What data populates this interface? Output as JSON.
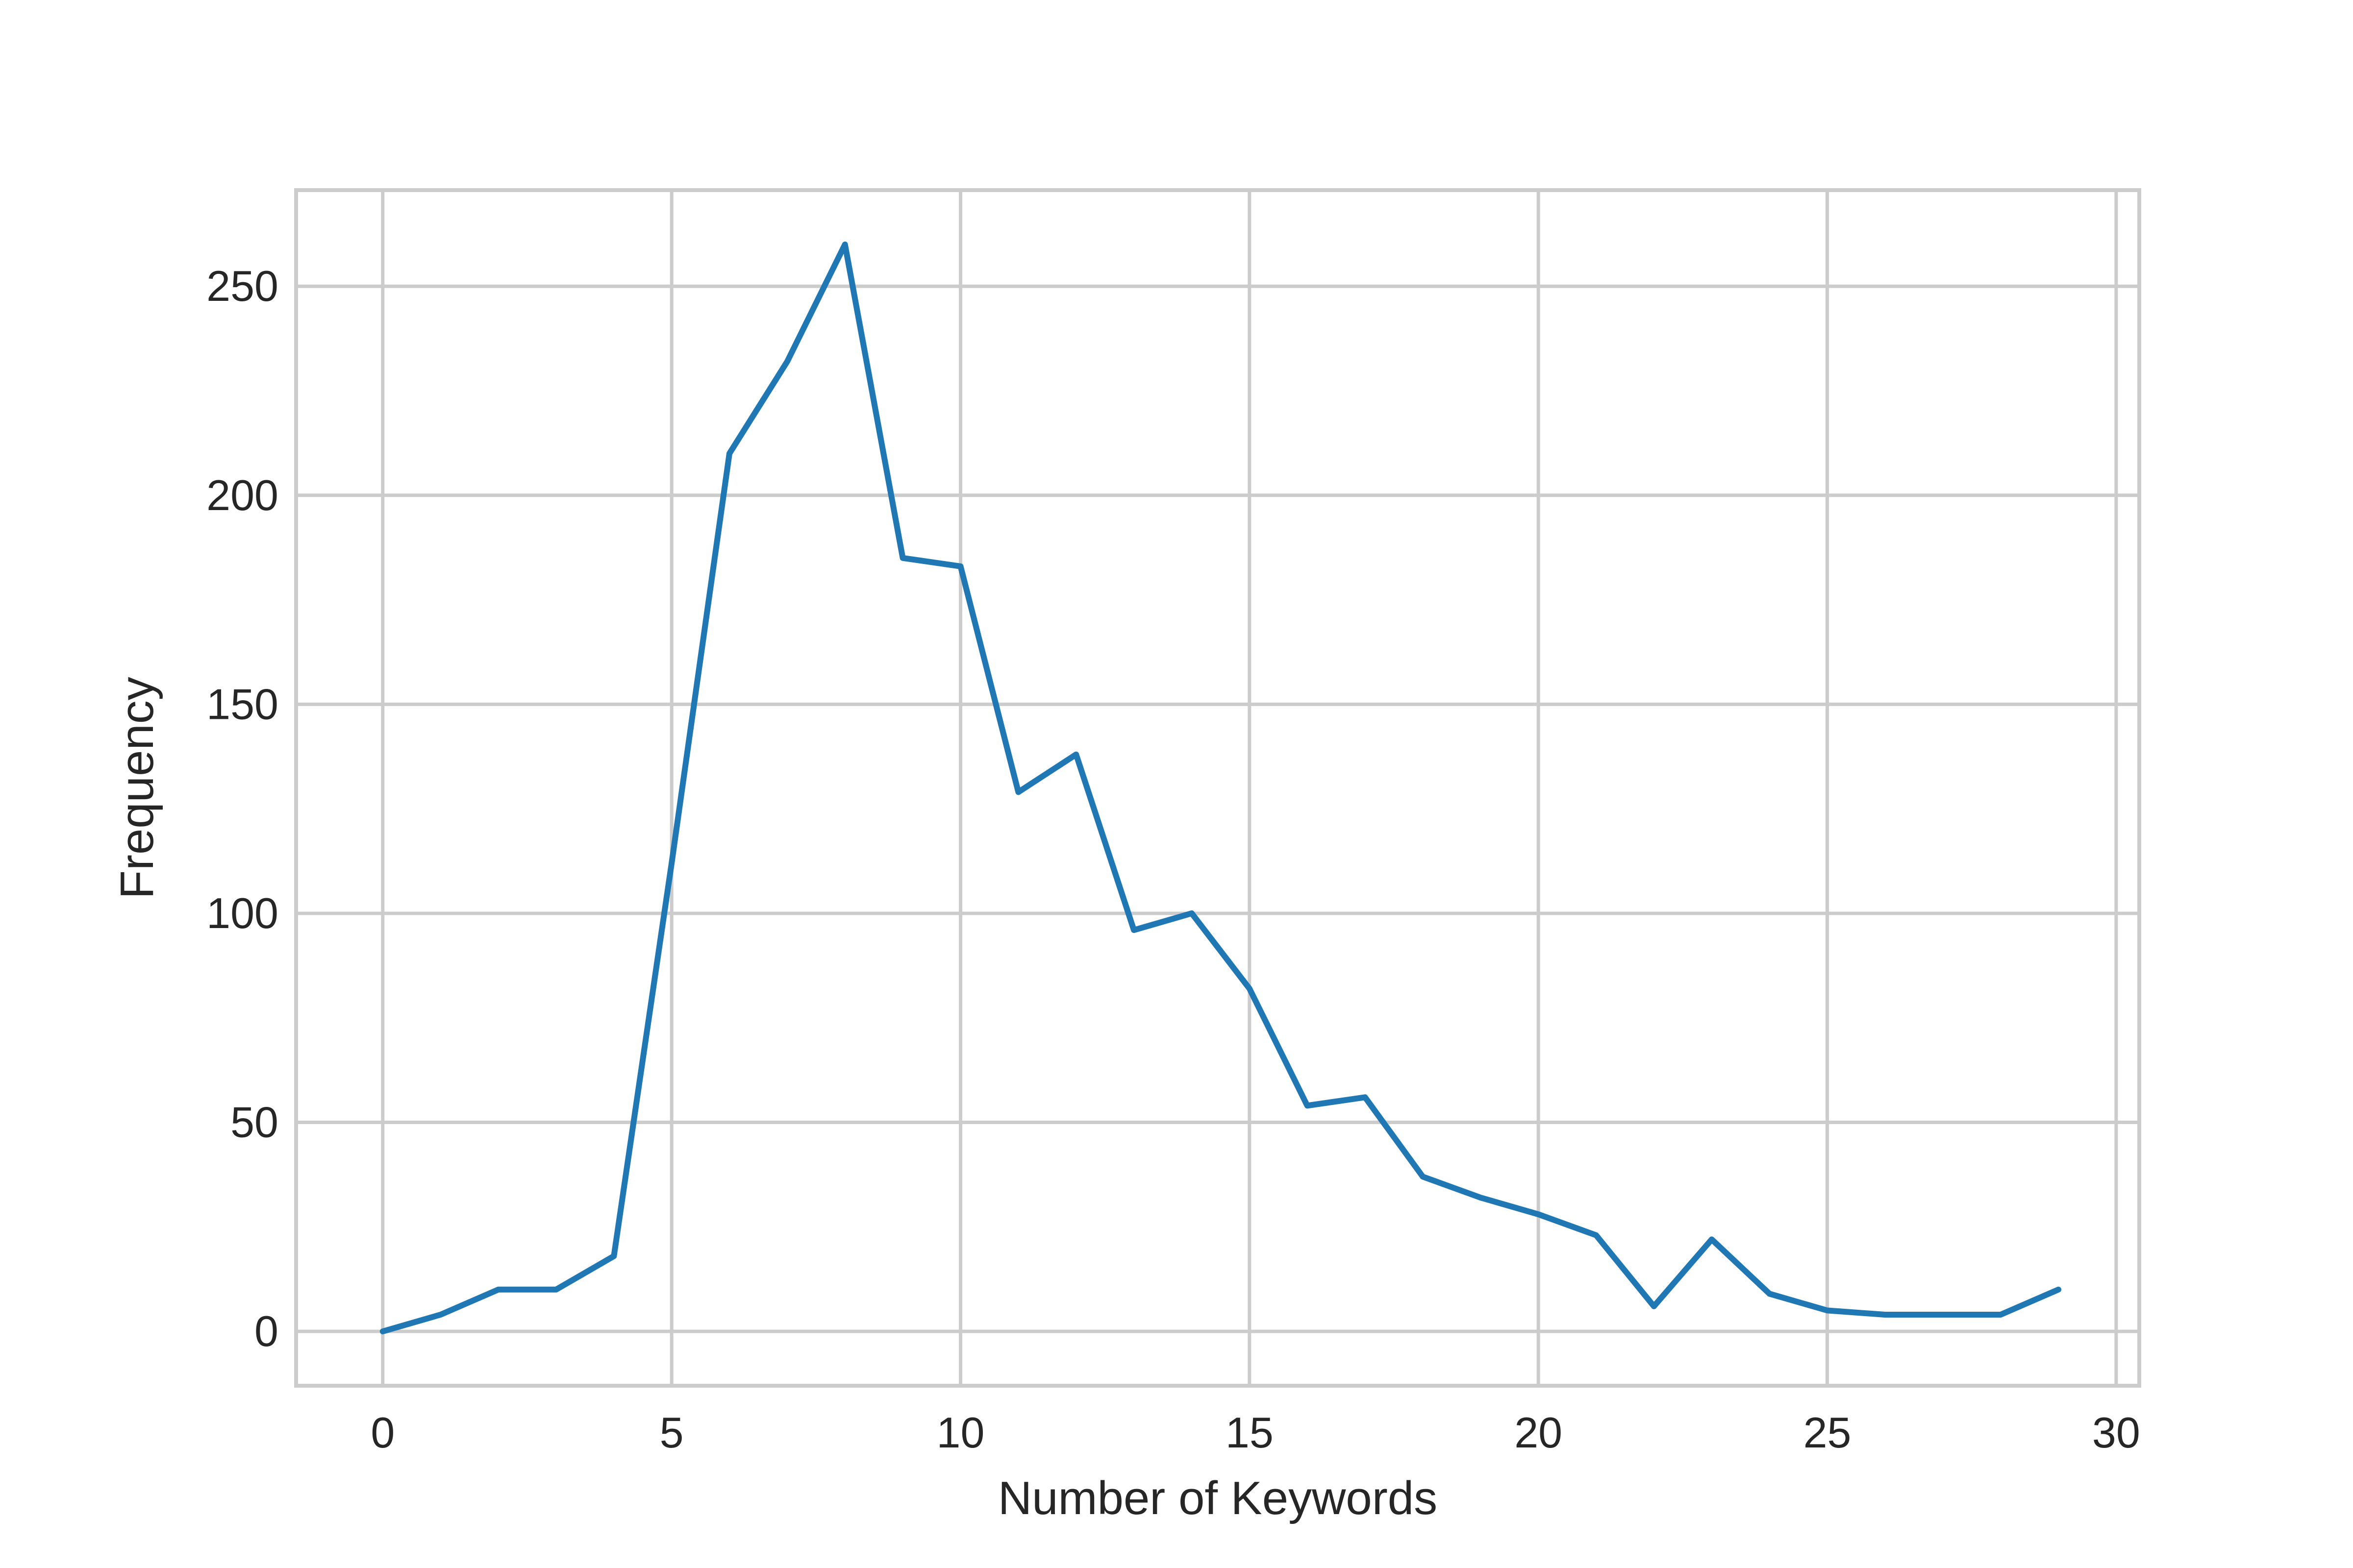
{
  "chart_data": {
    "type": "line",
    "title": "",
    "xlabel": "Number of Keywords",
    "ylabel": "Frequency",
    "xlim": [
      -1.5,
      30.4
    ],
    "ylim": [
      -13,
      273
    ],
    "x_ticks": [
      0,
      5,
      10,
      15,
      20,
      25,
      30
    ],
    "y_ticks": [
      0,
      50,
      100,
      150,
      200,
      250
    ],
    "x_tick_labels": [
      "0",
      "5",
      "10",
      "15",
      "20",
      "25",
      "30"
    ],
    "y_tick_labels": [
      "0",
      "50",
      "100",
      "150",
      "200",
      "250"
    ],
    "grid": true,
    "legend": "none",
    "series": [
      {
        "color": "#1f77b4",
        "x": [
          0,
          1,
          2,
          3,
          4,
          5,
          6,
          7,
          8,
          9,
          10,
          11,
          12,
          13,
          14,
          15,
          16,
          17,
          18,
          19,
          20,
          21,
          22,
          23,
          24,
          25,
          26,
          27,
          28,
          29
        ],
        "y": [
          0,
          4,
          10,
          10,
          18,
          112,
          210,
          232,
          260,
          185,
          183,
          129,
          138,
          96,
          100,
          82,
          54,
          56,
          37,
          32,
          28,
          23,
          6,
          22,
          9,
          5,
          4,
          4,
          4,
          10
        ]
      }
    ]
  }
}
